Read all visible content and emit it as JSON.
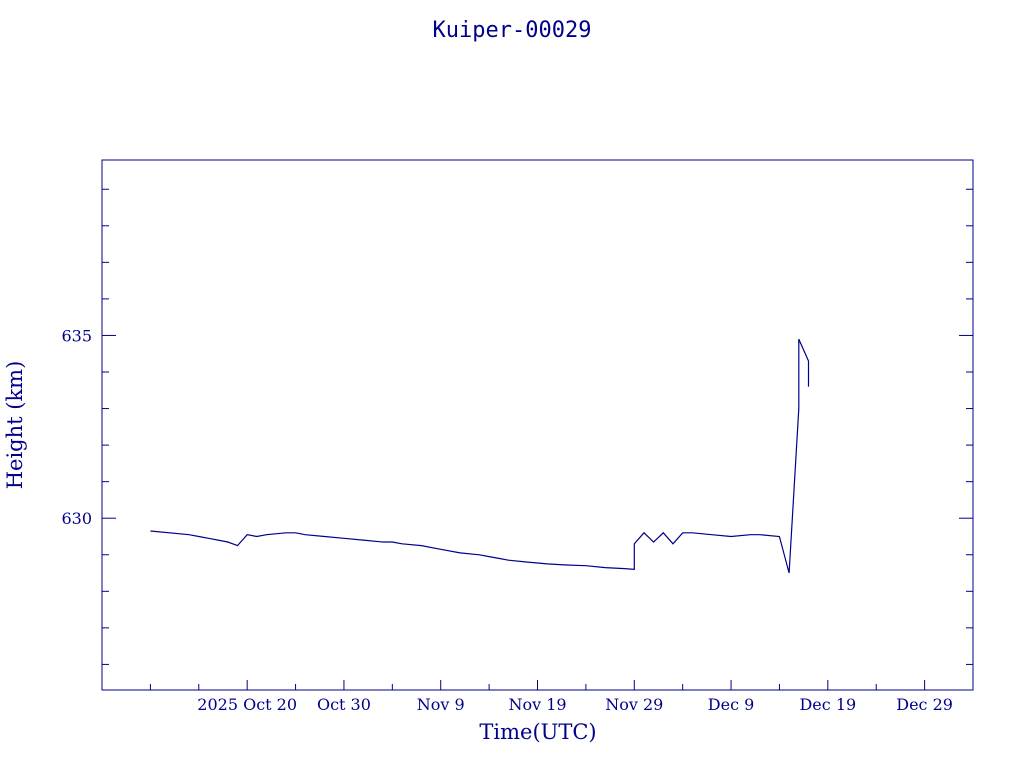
{
  "chart_data": {
    "type": "line",
    "title": "Kuiper-00029",
    "xlabel": "Time(UTC)",
    "ylabel": "Height (km)",
    "x_range": [
      "2025-10-05",
      "2026-01-03"
    ],
    "ylim": [
      625.3,
      639.8
    ],
    "x_ticks": [
      {
        "label": "2025 Oct 20",
        "date": "2025-10-20"
      },
      {
        "label": "Oct 30",
        "date": "2025-10-30"
      },
      {
        "label": "Nov  9",
        "date": "2025-11-09"
      },
      {
        "label": "Nov 19",
        "date": "2025-11-19"
      },
      {
        "label": "Nov 29",
        "date": "2025-11-29"
      },
      {
        "label": "Dec  9",
        "date": "2025-12-09"
      },
      {
        "label": "Dec 19",
        "date": "2025-12-19"
      },
      {
        "label": "Dec 29",
        "date": "2025-12-29"
      }
    ],
    "y_ticks": [
      630,
      635
    ],
    "grid": false,
    "line_color": "#00008b",
    "series": [
      {
        "name": "",
        "x": [
          "2025-10-10",
          "2025-10-14",
          "2025-10-15",
          "2025-10-16",
          "2025-10-17",
          "2025-10-18",
          "2025-10-19",
          "2025-10-20",
          "2025-10-21",
          "2025-10-22",
          "2025-10-24",
          "2025-10-25",
          "2025-10-26",
          "2025-10-28",
          "2025-10-30",
          "2025-11-01",
          "2025-11-03",
          "2025-11-04",
          "2025-11-05",
          "2025-11-07",
          "2025-11-09",
          "2025-11-11",
          "2025-11-13",
          "2025-11-14",
          "2025-11-15",
          "2025-11-16",
          "2025-11-18",
          "2025-11-20",
          "2025-11-22",
          "2025-11-24",
          "2025-11-26",
          "2025-11-28",
          "2025-11-29",
          "2025-11-29",
          "2025-11-30",
          "2025-12-01",
          "2025-12-02",
          "2025-12-03",
          "2025-12-04",
          "2025-12-05",
          "2025-12-07",
          "2025-12-09",
          "2025-12-11",
          "2025-12-12",
          "2025-12-14",
          "2025-12-15",
          "2025-12-16",
          "2025-12-16",
          "2025-12-17",
          "2025-12-17"
        ],
        "values": [
          629.65,
          629.55,
          629.5,
          629.45,
          629.4,
          629.35,
          629.25,
          629.55,
          629.5,
          629.55,
          629.6,
          629.6,
          629.55,
          629.5,
          629.45,
          629.4,
          629.35,
          629.35,
          629.3,
          629.25,
          629.15,
          629.05,
          629.0,
          628.95,
          628.9,
          628.85,
          628.8,
          628.75,
          628.72,
          628.7,
          628.65,
          628.62,
          628.6,
          629.3,
          629.6,
          629.35,
          629.6,
          629.3,
          629.6,
          629.6,
          629.55,
          629.5,
          629.55,
          629.55,
          629.5,
          628.5,
          633.0,
          634.9,
          634.3,
          633.6
        ]
      }
    ]
  }
}
